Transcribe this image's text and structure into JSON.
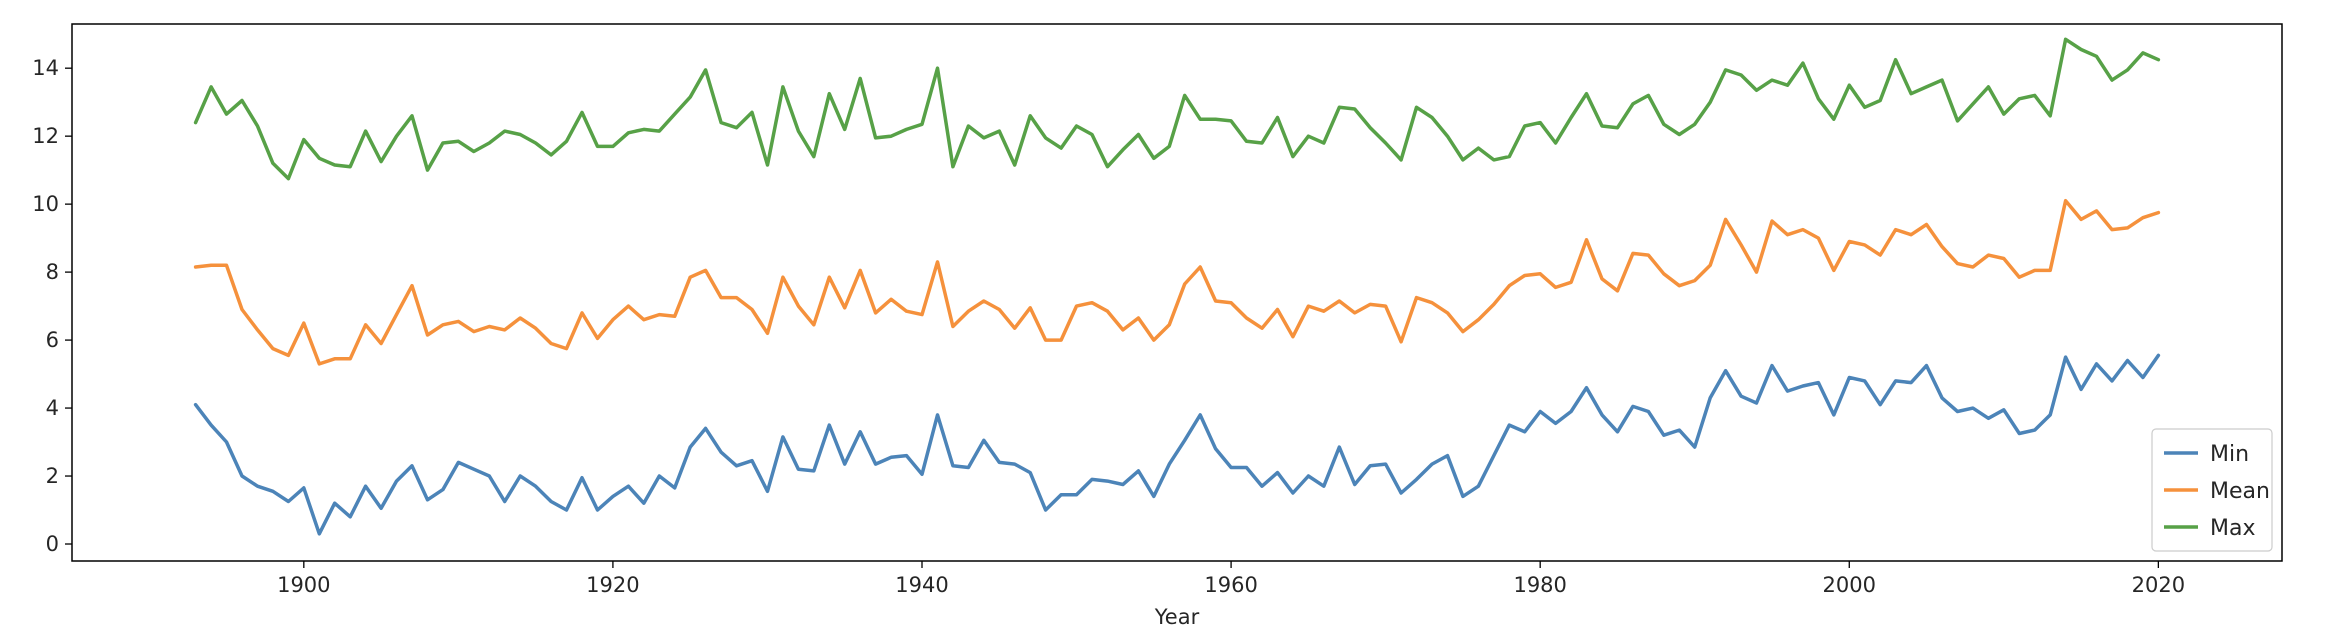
{
  "chart_data": {
    "type": "line",
    "title": "",
    "xlabel": "Year",
    "ylabel": "",
    "xlim": [
      1885,
      2028
    ],
    "ylim": [
      -0.5,
      15.3
    ],
    "xticks": [
      1900,
      1920,
      1940,
      1960,
      1980,
      2000,
      2020
    ],
    "yticks": [
      0,
      2,
      4,
      6,
      8,
      10,
      12,
      14
    ],
    "grid": false,
    "legend": {
      "position": "lower-right"
    },
    "x": [
      1893,
      1894,
      1895,
      1896,
      1897,
      1898,
      1899,
      1900,
      1901,
      1902,
      1903,
      1904,
      1905,
      1906,
      1907,
      1908,
      1909,
      1910,
      1911,
      1912,
      1913,
      1914,
      1915,
      1916,
      1917,
      1918,
      1919,
      1920,
      1921,
      1922,
      1923,
      1924,
      1925,
      1926,
      1927,
      1928,
      1929,
      1930,
      1931,
      1932,
      1933,
      1934,
      1935,
      1936,
      1937,
      1938,
      1939,
      1940,
      1941,
      1942,
      1943,
      1944,
      1945,
      1946,
      1947,
      1948,
      1949,
      1950,
      1951,
      1952,
      1953,
      1954,
      1955,
      1956,
      1957,
      1958,
      1959,
      1960,
      1961,
      1962,
      1963,
      1964,
      1965,
      1966,
      1967,
      1968,
      1969,
      1970,
      1971,
      1972,
      1973,
      1974,
      1975,
      1976,
      1977,
      1978,
      1979,
      1980,
      1981,
      1982,
      1983,
      1984,
      1985,
      1986,
      1987,
      1988,
      1989,
      1990,
      1991,
      1992,
      1993,
      1994,
      1995,
      1996,
      1997,
      1998,
      1999,
      2000,
      2001,
      2002,
      2003,
      2004,
      2005,
      2006,
      2007,
      2008,
      2009,
      2010,
      2011,
      2012,
      2013,
      2014,
      2015,
      2016,
      2017,
      2018,
      2019,
      2020
    ],
    "series": [
      {
        "name": "Min",
        "color": "#4c84b8",
        "values": [
          4.1,
          3.5,
          3.0,
          2.0,
          1.7,
          1.55,
          1.25,
          1.65,
          0.3,
          1.2,
          0.8,
          1.7,
          1.05,
          1.85,
          2.3,
          1.3,
          1.6,
          2.4,
          2.2,
          2.0,
          1.25,
          2.0,
          1.7,
          1.25,
          1.0,
          1.95,
          1.0,
          1.4,
          1.7,
          1.2,
          2.0,
          1.65,
          2.85,
          3.4,
          2.7,
          2.3,
          2.45,
          1.55,
          3.15,
          2.2,
          2.15,
          3.5,
          2.35,
          3.3,
          2.35,
          2.55,
          2.6,
          2.05,
          3.8,
          2.3,
          2.25,
          3.05,
          2.4,
          2.35,
          2.1,
          1.0,
          1.45,
          1.45,
          1.9,
          1.85,
          1.75,
          2.15,
          1.4,
          2.35,
          3.05,
          3.8,
          2.8,
          2.25,
          2.25,
          1.7,
          2.1,
          1.5,
          2.0,
          1.7,
          2.85,
          1.75,
          2.3,
          2.35,
          1.5,
          1.9,
          2.35,
          2.6,
          1.4,
          1.7,
          2.6,
          3.5,
          3.3,
          3.9,
          3.55,
          3.9,
          4.6,
          3.8,
          3.3,
          4.05,
          3.9,
          3.2,
          3.35,
          2.85,
          4.3,
          5.1,
          4.35,
          4.15,
          5.25,
          4.5,
          4.65,
          4.75,
          3.8,
          4.9,
          4.8,
          4.1,
          4.8,
          4.75,
          5.25,
          4.3,
          3.9,
          4.0,
          3.7,
          3.95,
          3.25,
          3.35,
          3.8,
          5.5,
          4.55,
          5.3,
          4.8,
          5.4,
          4.9,
          5.55
        ]
      },
      {
        "name": "Mean",
        "color": "#f5913c",
        "values": [
          8.15,
          8.2,
          8.2,
          6.9,
          6.3,
          5.75,
          5.55,
          6.5,
          5.3,
          5.45,
          5.45,
          6.45,
          5.9,
          6.75,
          7.6,
          6.15,
          6.45,
          6.55,
          6.25,
          6.4,
          6.3,
          6.65,
          6.35,
          5.9,
          5.75,
          6.8,
          6.05,
          6.6,
          7.0,
          6.6,
          6.75,
          6.7,
          7.85,
          8.05,
          7.25,
          7.25,
          6.9,
          6.2,
          7.85,
          7.0,
          6.45,
          7.85,
          6.95,
          8.05,
          6.8,
          7.2,
          6.85,
          6.75,
          8.3,
          6.4,
          6.85,
          7.15,
          6.9,
          6.35,
          6.95,
          6.0,
          6.0,
          7.0,
          7.1,
          6.85,
          6.3,
          6.65,
          6.0,
          6.45,
          7.65,
          8.15,
          7.15,
          7.1,
          6.65,
          6.35,
          6.9,
          6.1,
          7.0,
          6.85,
          7.15,
          6.8,
          7.05,
          7.0,
          5.95,
          7.25,
          7.1,
          6.8,
          6.25,
          6.6,
          7.05,
          7.6,
          7.9,
          7.95,
          7.55,
          7.7,
          8.95,
          7.8,
          7.45,
          8.55,
          8.5,
          7.95,
          7.6,
          7.75,
          8.2,
          9.55,
          8.8,
          8.0,
          9.5,
          9.1,
          9.25,
          9.0,
          8.05,
          8.9,
          8.8,
          8.5,
          9.25,
          9.1,
          9.4,
          8.75,
          8.25,
          8.15,
          8.5,
          8.4,
          7.85,
          8.05,
          8.05,
          10.1,
          9.55,
          9.8,
          9.25,
          9.3,
          9.6,
          9.75
        ]
      },
      {
        "name": "Max",
        "color": "#57a147",
        "values": [
          12.4,
          13.45,
          12.65,
          13.05,
          12.3,
          11.2,
          10.75,
          11.9,
          11.35,
          11.15,
          11.1,
          12.15,
          11.25,
          12.0,
          12.6,
          11.0,
          11.8,
          11.85,
          11.55,
          11.8,
          12.15,
          12.05,
          11.8,
          11.45,
          11.85,
          12.7,
          11.7,
          11.7,
          12.1,
          12.2,
          12.15,
          12.65,
          13.15,
          13.95,
          12.4,
          12.25,
          12.7,
          11.15,
          13.45,
          12.15,
          11.4,
          13.25,
          12.2,
          13.7,
          11.95,
          12.0,
          12.2,
          12.35,
          14.0,
          11.1,
          12.3,
          11.95,
          12.15,
          11.15,
          12.6,
          11.95,
          11.65,
          12.3,
          12.05,
          11.1,
          11.6,
          12.05,
          11.35,
          11.7,
          13.2,
          12.5,
          12.5,
          12.45,
          11.85,
          11.8,
          12.55,
          11.4,
          12.0,
          11.8,
          12.85,
          12.8,
          12.25,
          11.8,
          11.3,
          12.85,
          12.55,
          12.0,
          11.3,
          11.65,
          11.3,
          11.4,
          12.3,
          12.4,
          11.8,
          12.55,
          13.25,
          12.3,
          12.25,
          12.95,
          13.2,
          12.35,
          12.05,
          12.35,
          13.0,
          13.95,
          13.8,
          13.35,
          13.65,
          13.5,
          14.15,
          13.1,
          12.5,
          13.5,
          12.85,
          13.05,
          14.25,
          13.25,
          13.45,
          13.65,
          12.45,
          12.95,
          13.45,
          12.65,
          13.1,
          13.2,
          12.6,
          14.85,
          14.55,
          14.35,
          13.65,
          13.95,
          14.45,
          14.25
        ]
      }
    ]
  }
}
